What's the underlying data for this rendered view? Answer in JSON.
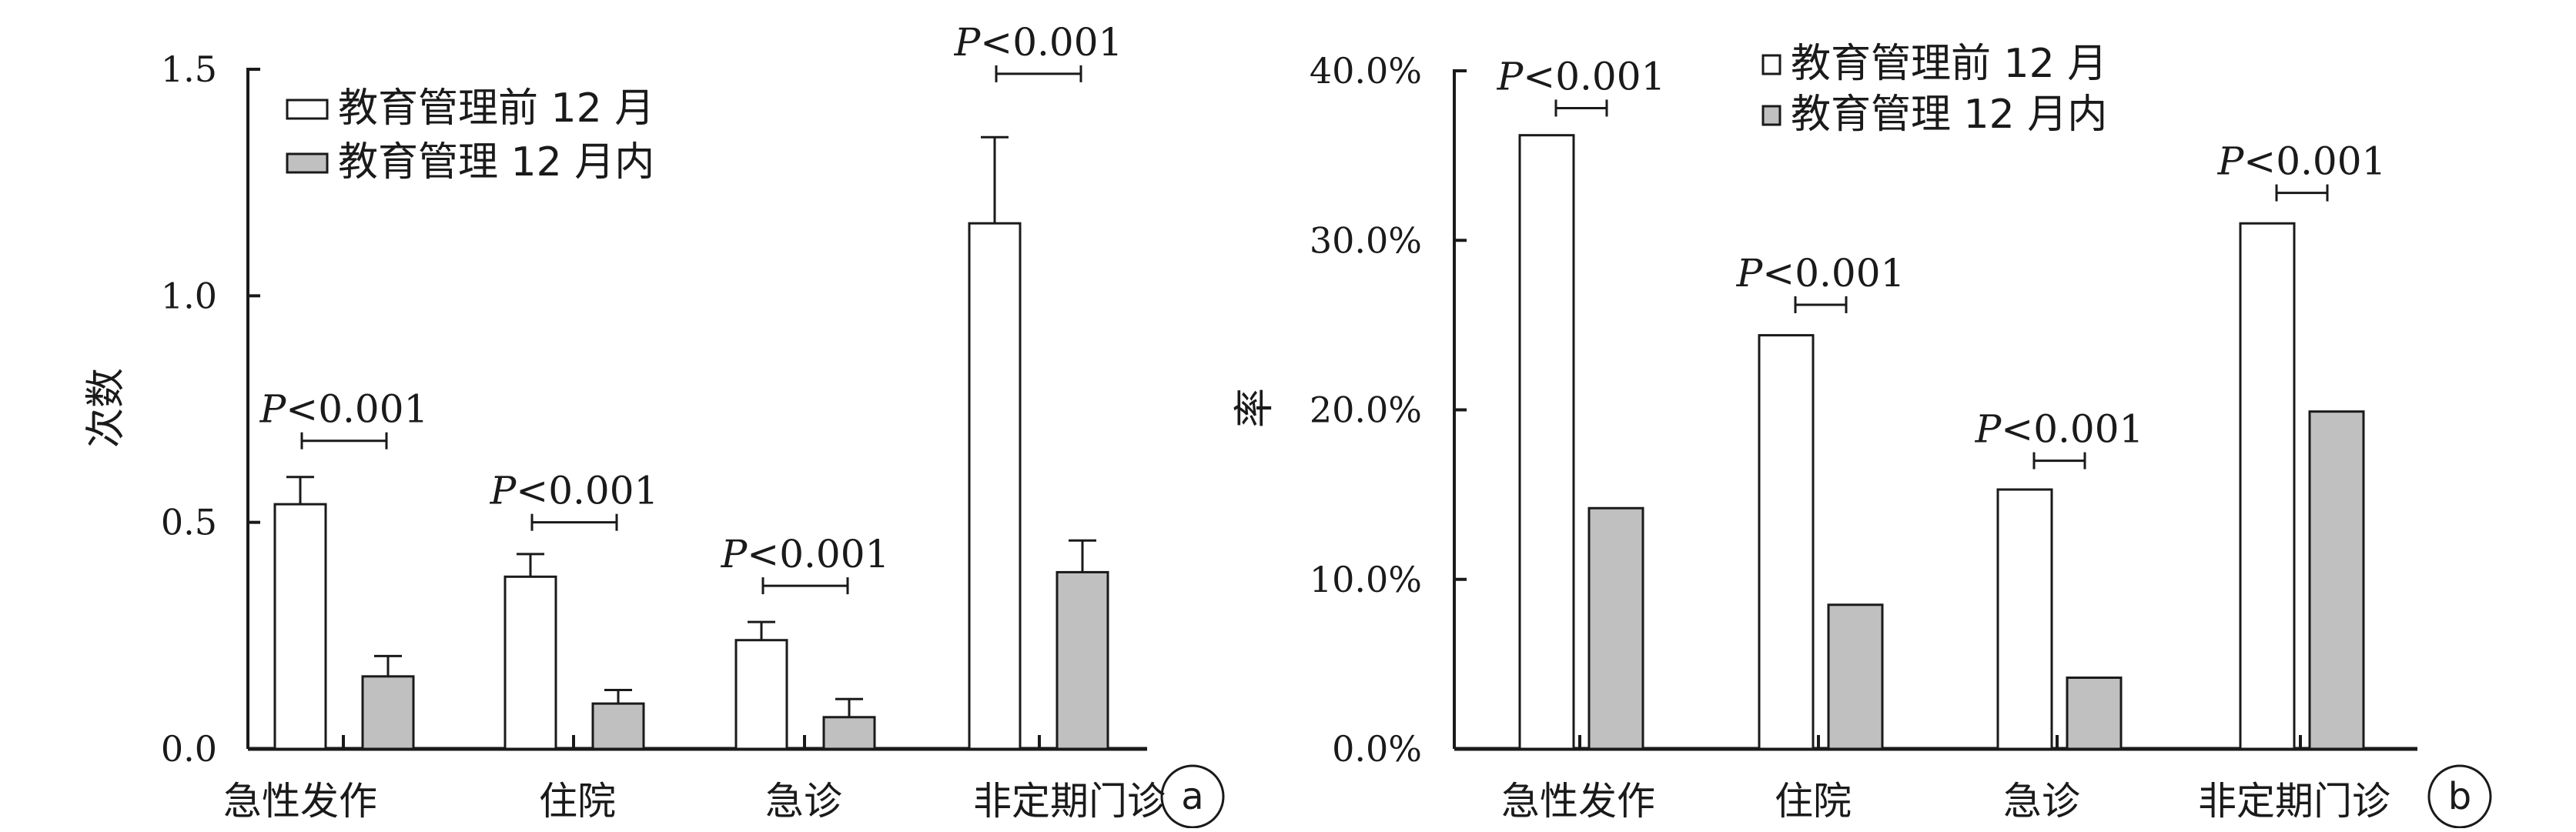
{
  "chart_data": [
    {
      "type": "bar",
      "panel_label": "a",
      "ylabel": "次数",
      "ylim": [
        0,
        1.5
      ],
      "yticks": [
        "0.0",
        "0.5",
        "1.0",
        "1.5"
      ],
      "categories": [
        "急性发作",
        "住院",
        "急诊",
        "非定期门诊"
      ],
      "series": [
        {
          "name": "教育管理前 12 月",
          "values": [
            0.54,
            0.38,
            0.24,
            1.16
          ],
          "error": [
            0.06,
            0.05,
            0.04,
            0.19
          ],
          "color": "#ffffff"
        },
        {
          "name": "教育管理 12 月内",
          "values": [
            0.16,
            0.1,
            0.07,
            0.39
          ],
          "error": [
            0.045,
            0.03,
            0.04,
            0.07
          ],
          "color": "#c0c0c0"
        }
      ],
      "annotations": [
        "P<0.001",
        "P<0.001",
        "P<0.001",
        "P<0.001"
      ],
      "annotation_levels": [
        0.68,
        0.5,
        0.36,
        1.49
      ],
      "legend_position": "top-left"
    },
    {
      "type": "bar",
      "panel_label": "b",
      "ylabel": "率",
      "ylim": [
        0,
        40
      ],
      "yticks": [
        "0.0%",
        "10.0%",
        "20.0%",
        "30.0%",
        "40.0%"
      ],
      "categories": [
        "急性发作",
        "住院",
        "急诊",
        "非定期门诊"
      ],
      "series": [
        {
          "name": "教育管理前 12 月",
          "values": [
            36.2,
            24.4,
            15.3,
            31.0
          ],
          "color": "#ffffff"
        },
        {
          "name": "教育管理 12 月内",
          "values": [
            14.2,
            8.5,
            4.2,
            19.9
          ],
          "color": "#c0c0c0"
        }
      ],
      "annotations": [
        "P<0.001",
        "P<0.001",
        "P<0.001",
        "P<0.001"
      ],
      "annotation_levels": [
        37.8,
        26.2,
        17.0,
        32.8
      ],
      "legend_position": "top-center"
    }
  ]
}
